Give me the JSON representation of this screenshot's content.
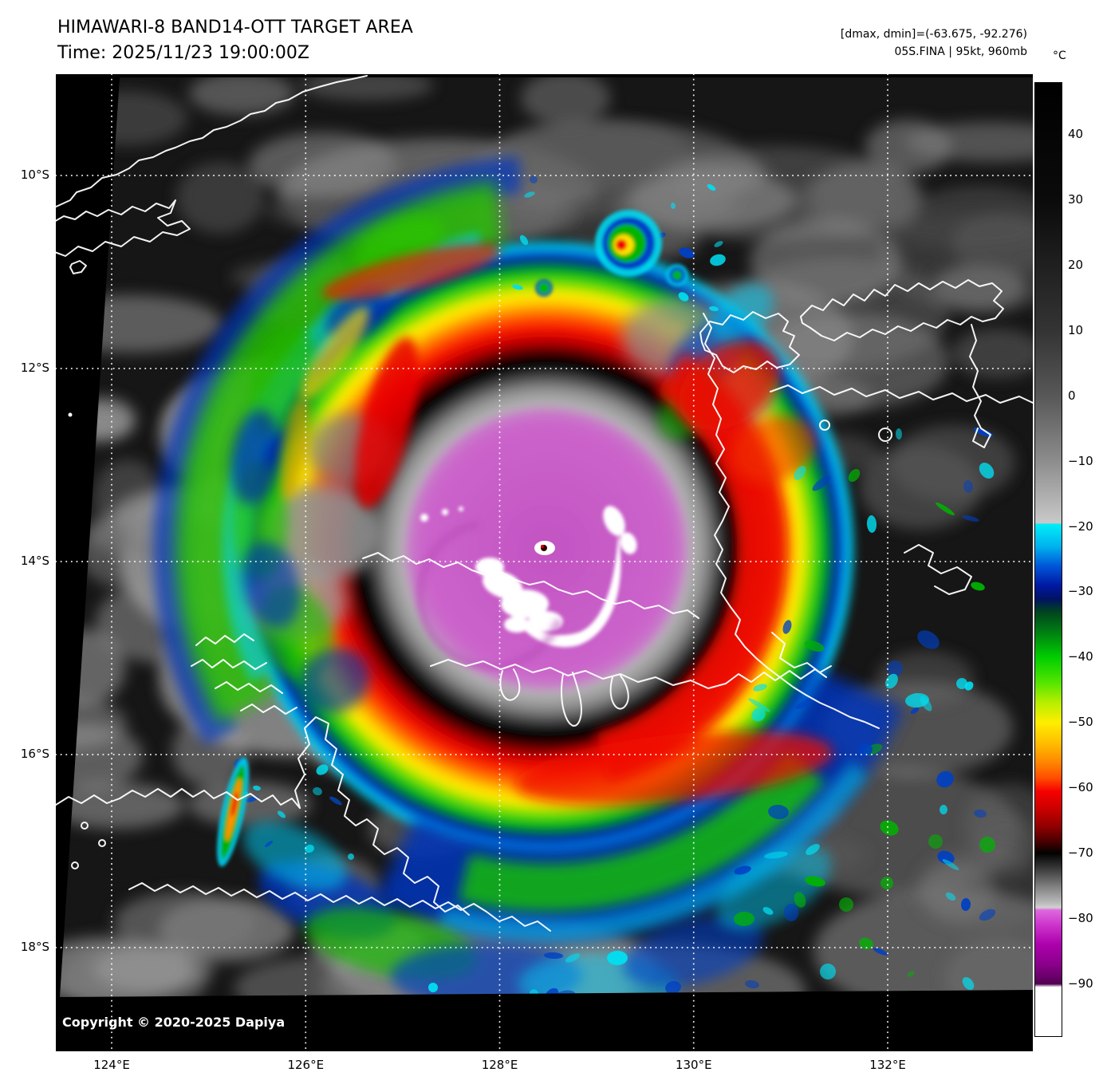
{
  "header": {
    "title": "HIMAWARI-8 BAND14-OTT TARGET AREA",
    "time_line": "Time: 2025/11/23 19:00:00Z",
    "dmax_dmin": "[dmax, dmin]=(-63.675, -92.276)",
    "storm_info": "05S.FINA | 95kt, 960mb"
  },
  "map": {
    "copyright": "Copyright © 2020-2025 Dapiya",
    "lat_ticks": [
      "10°S",
      "12°S",
      "14°S",
      "16°S",
      "18°S"
    ],
    "lon_ticks": [
      "124°E",
      "126°E",
      "128°E",
      "130°E",
      "132°E"
    ]
  },
  "colorbar": {
    "unit": "°C",
    "ticks": [
      {
        "value": 40,
        "label": "40"
      },
      {
        "value": 30,
        "label": "30"
      },
      {
        "value": 20,
        "label": "20"
      },
      {
        "value": 10,
        "label": "10"
      },
      {
        "value": 0,
        "label": "0"
      },
      {
        "value": -10,
        "label": "−10"
      },
      {
        "value": -20,
        "label": "−20"
      },
      {
        "value": -30,
        "label": "−30"
      },
      {
        "value": -40,
        "label": "−40"
      },
      {
        "value": -50,
        "label": "−50"
      },
      {
        "value": -60,
        "label": "−60"
      },
      {
        "value": -70,
        "label": "−70"
      },
      {
        "value": -80,
        "label": "−80"
      },
      {
        "value": -90,
        "label": "−90"
      }
    ],
    "scale": {
      "top_value": 48,
      "bottom_value": -98
    },
    "gradient": [
      {
        "v": 48,
        "c": "#000000"
      },
      {
        "v": 30,
        "c": "#0b0b0b"
      },
      {
        "v": 10,
        "c": "#343434"
      },
      {
        "v": 0,
        "c": "#585858"
      },
      {
        "v": -10,
        "c": "#8d8d8d"
      },
      {
        "v": -19.4,
        "c": "#c9c9c9"
      },
      {
        "v": -19.6,
        "c": "#00eef8"
      },
      {
        "v": -23,
        "c": "#00b2ee"
      },
      {
        "v": -26,
        "c": "#0056d8"
      },
      {
        "v": -29,
        "c": "#0018a2"
      },
      {
        "v": -31,
        "c": "#001264"
      },
      {
        "v": -33,
        "c": "#00441e"
      },
      {
        "v": -36,
        "c": "#007c12"
      },
      {
        "v": -40,
        "c": "#00ce00"
      },
      {
        "v": -44,
        "c": "#58e600"
      },
      {
        "v": -47,
        "c": "#baee00"
      },
      {
        "v": -50,
        "c": "#ffee00"
      },
      {
        "v": -53,
        "c": "#ffc000"
      },
      {
        "v": -56,
        "c": "#ff8800"
      },
      {
        "v": -58.5,
        "c": "#ff4c00"
      },
      {
        "v": -60.5,
        "c": "#f60000"
      },
      {
        "v": -63,
        "c": "#ce0000"
      },
      {
        "v": -66,
        "c": "#8e0000"
      },
      {
        "v": -68.5,
        "c": "#3e0000"
      },
      {
        "v": -70,
        "c": "#020202"
      },
      {
        "v": -72.5,
        "c": "#3e3e3e"
      },
      {
        "v": -75,
        "c": "#7e7e7e"
      },
      {
        "v": -77.5,
        "c": "#b8b8b8"
      },
      {
        "v": -78.3,
        "c": "#d0d0d0"
      },
      {
        "v": -78.7,
        "c": "#de68de"
      },
      {
        "v": -81,
        "c": "#cc34cc"
      },
      {
        "v": -84,
        "c": "#ac00ac"
      },
      {
        "v": -87,
        "c": "#8a008a"
      },
      {
        "v": -89.4,
        "c": "#600060"
      },
      {
        "v": -90,
        "c": "#4e004e"
      },
      {
        "v": -90.5,
        "c": "#ffffff"
      },
      {
        "v": -98,
        "c": "#ffffff"
      }
    ]
  }
}
